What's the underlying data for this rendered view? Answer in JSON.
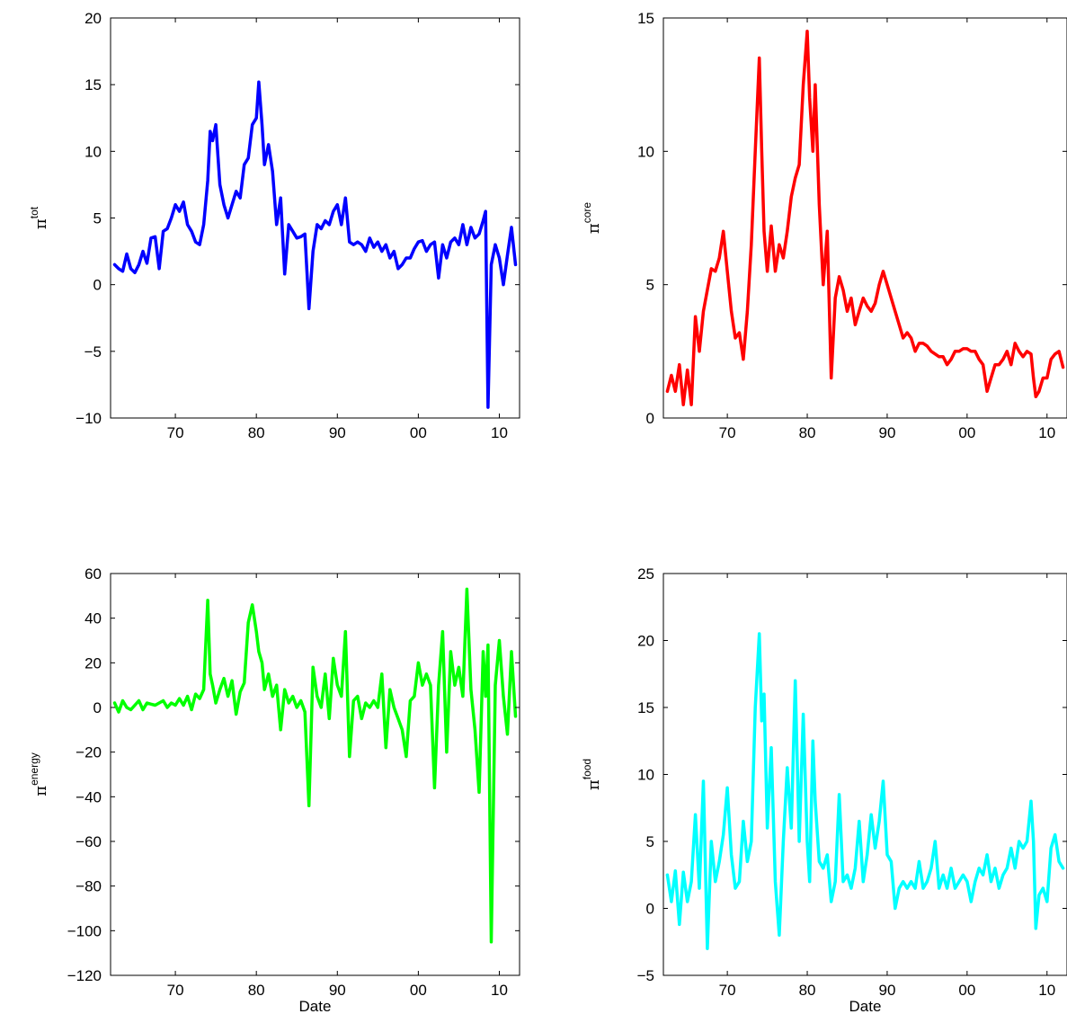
{
  "chart_data": [
    {
      "type": "line",
      "ylabel_symbol": "π",
      "ylabel_superscript": "tot",
      "xlabel": "",
      "color": "#0000ff",
      "xlim": [
        1962,
        2012.5
      ],
      "ylim": [
        -10,
        20
      ],
      "yticks": [
        -10,
        -5,
        0,
        5,
        10,
        15,
        20
      ],
      "ytick_labels": [
        "−10",
        "−5",
        "0",
        "5",
        "10",
        "15",
        "20"
      ],
      "xticks": [
        1970,
        1980,
        1990,
        2000,
        2010
      ],
      "xtick_labels": [
        "70",
        "80",
        "90",
        "00",
        "10"
      ],
      "series": [
        {
          "x": [
            1962.5,
            1963.0,
            1963.5,
            1964.0,
            1964.5,
            1965.0,
            1965.5,
            1966.0,
            1966.5,
            1967.0,
            1967.5,
            1968.0,
            1968.5,
            1969.0,
            1969.5,
            1970.0,
            1970.5,
            1971.0,
            1971.5,
            1972.0,
            1972.5,
            1973.0,
            1973.5,
            1974.0,
            1974.3,
            1974.6,
            1975.0,
            1975.5,
            1976.0,
            1976.5,
            1977.0,
            1977.5,
            1978.0,
            1978.5,
            1979.0,
            1979.5,
            1980.0,
            1980.3,
            1980.7,
            1981.0,
            1981.5,
            1982.0,
            1982.5,
            1983.0,
            1983.5,
            1984.0,
            1984.5,
            1985.0,
            1985.5,
            1986.0,
            1986.5,
            1987.0,
            1987.5,
            1988.0,
            1988.5,
            1989.0,
            1989.5,
            1990.0,
            1990.5,
            1991.0,
            1991.5,
            1992.0,
            1992.5,
            1993.0,
            1993.5,
            1994.0,
            1994.5,
            1995.0,
            1995.5,
            1996.0,
            1996.5,
            1997.0,
            1997.5,
            1998.0,
            1998.5,
            1999.0,
            1999.5,
            2000.0,
            2000.5,
            2001.0,
            2001.5,
            2002.0,
            2002.5,
            2003.0,
            2003.5,
            2004.0,
            2004.5,
            2005.0,
            2005.5,
            2006.0,
            2006.5,
            2007.0,
            2007.5,
            2008.0,
            2008.3,
            2008.6,
            2009.0,
            2009.5,
            2010.0,
            2010.5,
            2011.0,
            2011.5,
            2012.0
          ],
          "y": [
            1.5,
            1.2,
            1.0,
            2.3,
            1.2,
            0.9,
            1.5,
            2.5,
            1.6,
            3.5,
            3.6,
            1.2,
            4.0,
            4.2,
            5.0,
            6.0,
            5.5,
            6.2,
            4.5,
            4.0,
            3.2,
            3.0,
            4.5,
            7.8,
            11.5,
            10.8,
            12.0,
            7.5,
            6.0,
            5.0,
            6.0,
            7.0,
            6.5,
            9.0,
            9.5,
            12.0,
            12.5,
            15.2,
            12.0,
            9.0,
            10.5,
            8.5,
            4.5,
            6.5,
            0.8,
            4.5,
            4.0,
            3.5,
            3.6,
            3.8,
            -1.8,
            2.5,
            4.5,
            4.2,
            4.8,
            4.5,
            5.5,
            6.0,
            4.5,
            6.5,
            3.2,
            3.0,
            3.2,
            3.0,
            2.5,
            3.5,
            2.8,
            3.2,
            2.5,
            3.0,
            2.0,
            2.5,
            1.2,
            1.5,
            2.0,
            2.0,
            2.7,
            3.2,
            3.3,
            2.5,
            3.0,
            3.2,
            0.5,
            3.0,
            2.0,
            3.2,
            3.5,
            3.0,
            4.5,
            3.0,
            4.3,
            3.5,
            3.8,
            4.8,
            5.5,
            -9.2,
            1.5,
            3.0,
            2.0,
            0.0,
            2.2,
            4.3,
            1.5
          ]
        }
      ]
    },
    {
      "type": "line",
      "ylabel_symbol": "π",
      "ylabel_superscript": "core",
      "xlabel": "",
      "color": "#ff0000",
      "xlim": [
        1962,
        2012.5
      ],
      "ylim": [
        0,
        15
      ],
      "yticks": [
        0,
        5,
        10,
        15
      ],
      "ytick_labels": [
        "0",
        "5",
        "10",
        "15"
      ],
      "xticks": [
        1970,
        1980,
        1990,
        2000,
        2010
      ],
      "xtick_labels": [
        "70",
        "80",
        "90",
        "00",
        "10"
      ],
      "series": [
        {
          "x": [
            1962.5,
            1963.0,
            1963.5,
            1964.0,
            1964.5,
            1965.0,
            1965.5,
            1966.0,
            1966.5,
            1967.0,
            1967.5,
            1968.0,
            1968.5,
            1969.0,
            1969.5,
            1970.0,
            1970.5,
            1971.0,
            1971.5,
            1972.0,
            1972.5,
            1973.0,
            1973.5,
            1974.0,
            1974.3,
            1974.6,
            1975.0,
            1975.5,
            1976.0,
            1976.5,
            1977.0,
            1977.5,
            1978.0,
            1978.5,
            1979.0,
            1979.5,
            1980.0,
            1980.3,
            1980.7,
            1981.0,
            1981.5,
            1982.0,
            1982.5,
            1983.0,
            1983.5,
            1984.0,
            1984.5,
            1985.0,
            1985.5,
            1986.0,
            1986.5,
            1987.0,
            1987.5,
            1988.0,
            1988.5,
            1989.0,
            1989.5,
            1990.0,
            1990.5,
            1991.0,
            1991.5,
            1992.0,
            1992.5,
            1993.0,
            1993.5,
            1994.0,
            1994.5,
            1995.0,
            1995.5,
            1996.0,
            1996.5,
            1997.0,
            1997.5,
            1998.0,
            1998.5,
            1999.0,
            1999.5,
            2000.0,
            2000.5,
            2001.0,
            2001.5,
            2002.0,
            2002.5,
            2003.0,
            2003.5,
            2004.0,
            2004.5,
            2005.0,
            2005.5,
            2006.0,
            2006.5,
            2007.0,
            2007.5,
            2008.0,
            2008.3,
            2008.6,
            2009.0,
            2009.5,
            2010.0,
            2010.5,
            2011.0,
            2011.5,
            2012.0
          ],
          "y": [
            1.0,
            1.6,
            1.0,
            2.0,
            0.5,
            1.8,
            0.5,
            3.8,
            2.5,
            4.0,
            4.8,
            5.6,
            5.5,
            6.0,
            7.0,
            5.5,
            4.0,
            3.0,
            3.2,
            2.2,
            4.0,
            6.5,
            10.0,
            13.5,
            10.0,
            7.0,
            5.5,
            7.2,
            5.5,
            6.5,
            6.0,
            7.0,
            8.3,
            9.0,
            9.5,
            12.5,
            14.5,
            12.0,
            10.0,
            12.5,
            8.0,
            5.0,
            7.0,
            1.5,
            4.5,
            5.3,
            4.8,
            4.0,
            4.5,
            3.5,
            4.0,
            4.5,
            4.2,
            4.0,
            4.3,
            5.0,
            5.5,
            5.0,
            4.5,
            4.0,
            3.5,
            3.0,
            3.2,
            3.0,
            2.5,
            2.8,
            2.8,
            2.7,
            2.5,
            2.4,
            2.3,
            2.3,
            2.0,
            2.2,
            2.5,
            2.5,
            2.6,
            2.6,
            2.5,
            2.5,
            2.2,
            2.0,
            1.0,
            1.5,
            2.0,
            2.0,
            2.2,
            2.5,
            2.0,
            2.8,
            2.5,
            2.3,
            2.5,
            2.4,
            1.5,
            0.8,
            1.0,
            1.5,
            1.5,
            2.2,
            2.4,
            2.5,
            1.9
          ]
        }
      ]
    },
    {
      "type": "line",
      "ylabel_symbol": "π",
      "ylabel_superscript": "energy",
      "xlabel": "Date",
      "color": "#00ff00",
      "xlim": [
        1962,
        2012.5
      ],
      "ylim": [
        -120,
        60
      ],
      "yticks": [
        -120,
        -100,
        -80,
        -60,
        -40,
        -20,
        0,
        20,
        40,
        60
      ],
      "ytick_labels": [
        "−120",
        "−100",
        "−80",
        "−60",
        "−40",
        "−20",
        "0",
        "20",
        "40",
        "60"
      ],
      "xticks": [
        1970,
        1980,
        1990,
        2000,
        2010
      ],
      "xtick_labels": [
        "70",
        "80",
        "90",
        "00",
        "10"
      ],
      "series": [
        {
          "x": [
            1962.5,
            1963.0,
            1963.5,
            1964.0,
            1964.5,
            1965.0,
            1965.5,
            1966.0,
            1966.5,
            1967.0,
            1967.5,
            1968.0,
            1968.5,
            1969.0,
            1969.5,
            1970.0,
            1970.5,
            1971.0,
            1971.5,
            1972.0,
            1972.5,
            1973.0,
            1973.5,
            1974.0,
            1974.3,
            1974.6,
            1975.0,
            1975.5,
            1976.0,
            1976.5,
            1977.0,
            1977.5,
            1978.0,
            1978.5,
            1979.0,
            1979.5,
            1980.0,
            1980.3,
            1980.7,
            1981.0,
            1981.5,
            1982.0,
            1982.5,
            1983.0,
            1983.5,
            1984.0,
            1984.5,
            1985.0,
            1985.5,
            1986.0,
            1986.5,
            1987.0,
            1987.5,
            1988.0,
            1988.5,
            1989.0,
            1989.5,
            1990.0,
            1990.5,
            1991.0,
            1991.5,
            1992.0,
            1992.5,
            1993.0,
            1993.5,
            1994.0,
            1994.5,
            1995.0,
            1995.5,
            1996.0,
            1996.5,
            1997.0,
            1997.5,
            1998.0,
            1998.5,
            1999.0,
            1999.5,
            2000.0,
            2000.5,
            2001.0,
            2001.5,
            2002.0,
            2002.5,
            2003.0,
            2003.5,
            2004.0,
            2004.5,
            2005.0,
            2005.5,
            2006.0,
            2006.5,
            2007.0,
            2007.5,
            2008.0,
            2008.3,
            2008.6,
            2009.0,
            2009.5,
            2010.0,
            2010.5,
            2011.0,
            2011.5,
            2012.0
          ],
          "y": [
            2.0,
            -2.0,
            3.0,
            0.0,
            -1.0,
            1.0,
            3.0,
            -1.0,
            2.0,
            1.5,
            1.0,
            2.0,
            3.0,
            0.0,
            2.0,
            1.0,
            4.0,
            1.0,
            5.0,
            -1.0,
            6.0,
            4.0,
            8.0,
            48.0,
            15.0,
            10.0,
            2.0,
            8.0,
            13.0,
            5.0,
            12.0,
            -3.0,
            7.0,
            11.0,
            38.0,
            46.0,
            34.0,
            25.0,
            20.0,
            8.0,
            15.0,
            5.0,
            10.0,
            -10.0,
            8.0,
            2.0,
            5.0,
            0.0,
            3.0,
            -2.0,
            -44.0,
            18.0,
            5.0,
            0.0,
            15.0,
            -5.0,
            22.0,
            10.0,
            5.0,
            34.0,
            -22.0,
            3.0,
            5.0,
            -5.0,
            2.0,
            0.0,
            3.0,
            0.0,
            15.0,
            -18.0,
            8.0,
            0.0,
            -5.0,
            -10.0,
            -22.0,
            3.0,
            5.0,
            20.0,
            10.0,
            15.0,
            10.0,
            -36.0,
            10.0,
            34.0,
            -20.0,
            25.0,
            10.0,
            18.0,
            5.0,
            53.0,
            8.0,
            -10.0,
            -38.0,
            25.0,
            5.0,
            28.0,
            -105.0,
            10.0,
            30.0,
            5.0,
            -12.0,
            25.0,
            -4.0
          ]
        }
      ]
    },
    {
      "type": "line",
      "ylabel_symbol": "π",
      "ylabel_superscript": "food",
      "xlabel": "Date",
      "color": "#00ffff",
      "xlim": [
        1962,
        2012.5
      ],
      "ylim": [
        -5,
        25
      ],
      "yticks": [
        -5,
        0,
        5,
        10,
        15,
        20,
        25
      ],
      "ytick_labels": [
        "−5",
        "0",
        "5",
        "10",
        "15",
        "20",
        "25"
      ],
      "xticks": [
        1970,
        1980,
        1990,
        2000,
        2010
      ],
      "xtick_labels": [
        "70",
        "80",
        "90",
        "00",
        "10"
      ],
      "series": [
        {
          "x": [
            1962.5,
            1963.0,
            1963.5,
            1964.0,
            1964.5,
            1965.0,
            1965.5,
            1966.0,
            1966.5,
            1967.0,
            1967.5,
            1968.0,
            1968.5,
            1969.0,
            1969.5,
            1970.0,
            1970.5,
            1971.0,
            1971.5,
            1972.0,
            1972.5,
            1973.0,
            1973.5,
            1974.0,
            1974.3,
            1974.6,
            1975.0,
            1975.5,
            1976.0,
            1976.5,
            1977.0,
            1977.5,
            1978.0,
            1978.5,
            1979.0,
            1979.5,
            1980.0,
            1980.3,
            1980.7,
            1981.0,
            1981.5,
            1982.0,
            1982.5,
            1983.0,
            1983.5,
            1984.0,
            1984.5,
            1985.0,
            1985.5,
            1986.0,
            1986.5,
            1987.0,
            1987.5,
            1988.0,
            1988.5,
            1989.0,
            1989.5,
            1990.0,
            1990.5,
            1991.0,
            1991.5,
            1992.0,
            1992.5,
            1993.0,
            1993.5,
            1994.0,
            1994.5,
            1995.0,
            1995.5,
            1996.0,
            1996.5,
            1997.0,
            1997.5,
            1998.0,
            1998.5,
            1999.0,
            1999.5,
            2000.0,
            2000.5,
            2001.0,
            2001.5,
            2002.0,
            2002.5,
            2003.0,
            2003.5,
            2004.0,
            2004.5,
            2005.0,
            2005.5,
            2006.0,
            2006.5,
            2007.0,
            2007.5,
            2008.0,
            2008.3,
            2008.6,
            2009.0,
            2009.5,
            2010.0,
            2010.5,
            2011.0,
            2011.5,
            2012.0
          ],
          "y": [
            2.5,
            0.5,
            2.8,
            -1.2,
            2.7,
            0.5,
            2.0,
            7.0,
            1.5,
            9.5,
            -3.0,
            5.0,
            2.0,
            3.5,
            5.5,
            9.0,
            4.0,
            1.5,
            2.0,
            6.5,
            3.5,
            5.0,
            15.0,
            20.5,
            14.0,
            16.0,
            6.0,
            12.0,
            2.0,
            -2.0,
            5.0,
            10.5,
            6.0,
            17.0,
            5.0,
            14.5,
            5.0,
            2.0,
            12.5,
            8.0,
            3.5,
            3.0,
            4.0,
            0.5,
            2.0,
            8.5,
            2.0,
            2.5,
            1.5,
            3.0,
            6.5,
            2.0,
            4.0,
            7.0,
            4.5,
            6.5,
            9.5,
            4.0,
            3.5,
            0.0,
            1.5,
            2.0,
            1.5,
            2.0,
            1.5,
            3.5,
            1.5,
            2.0,
            3.0,
            5.0,
            1.5,
            2.5,
            1.5,
            3.0,
            1.5,
            2.0,
            2.5,
            2.0,
            0.5,
            2.0,
            3.0,
            2.5,
            4.0,
            2.0,
            3.0,
            1.5,
            2.5,
            3.0,
            4.5,
            3.0,
            5.0,
            4.5,
            5.0,
            8.0,
            5.0,
            -1.5,
            1.0,
            1.5,
            0.5,
            4.5,
            5.5,
            3.5,
            3.0
          ]
        }
      ]
    }
  ]
}
